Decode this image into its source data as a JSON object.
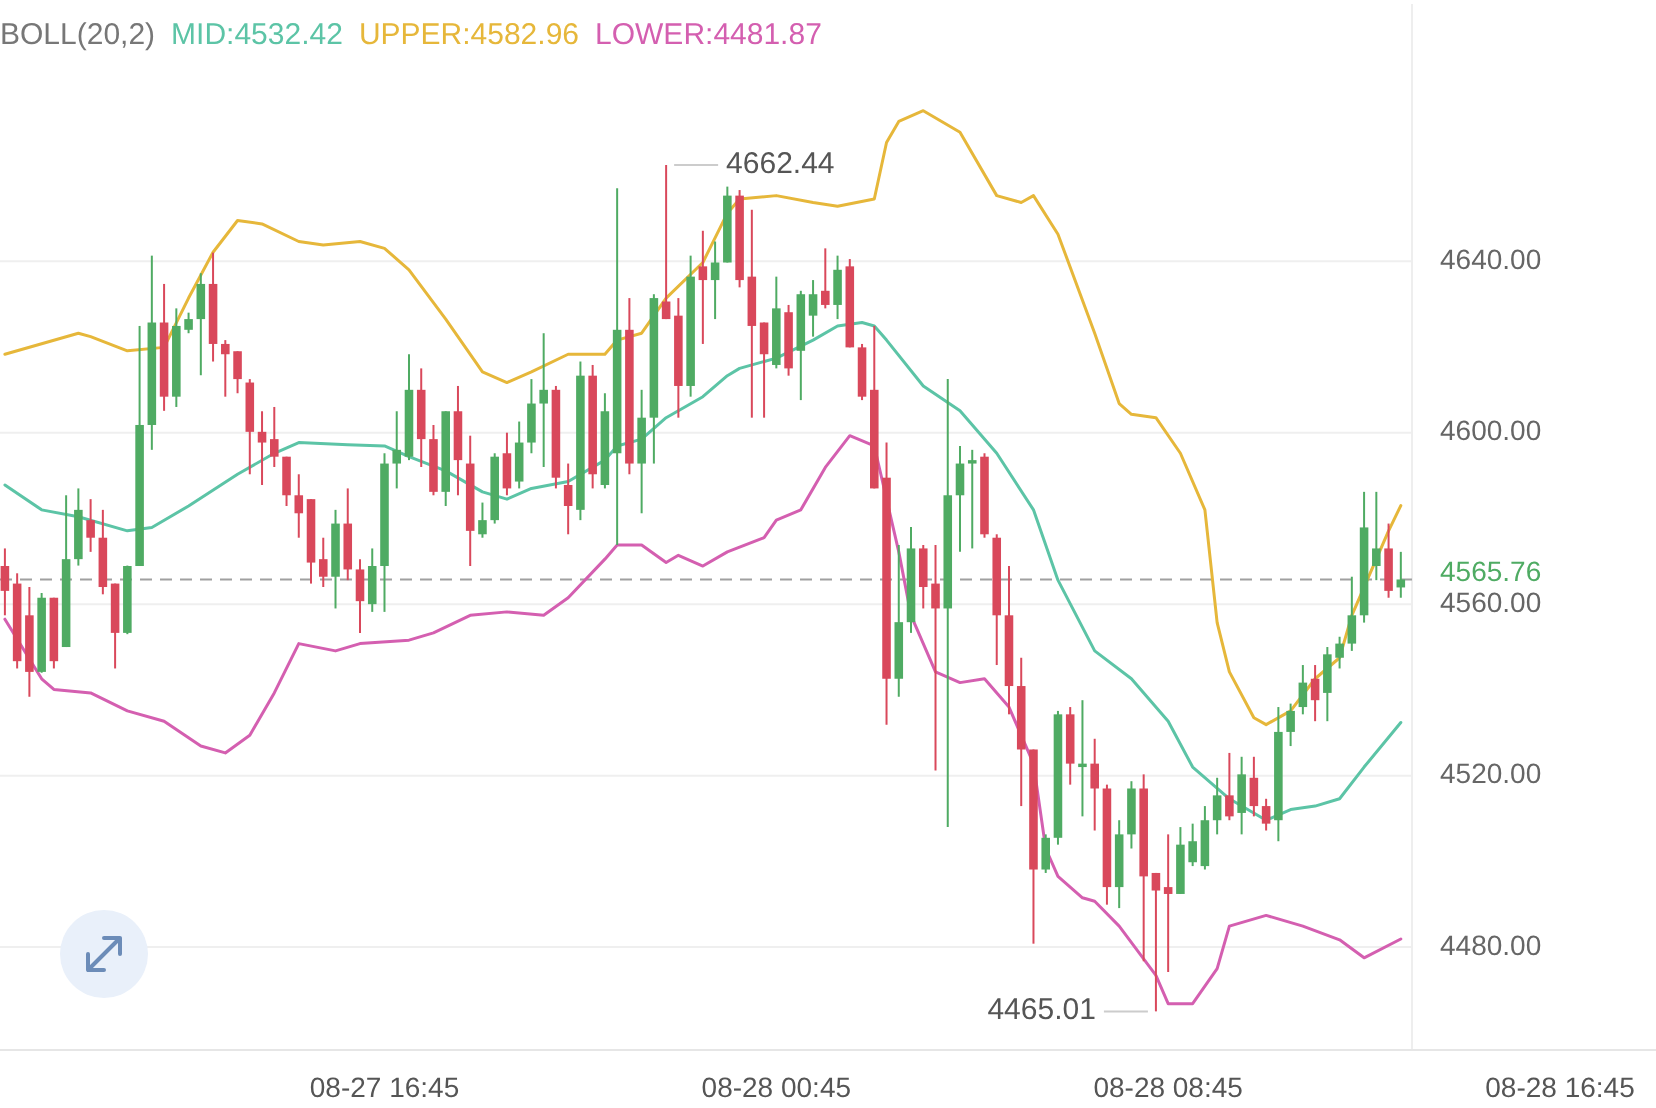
{
  "chart_data": {
    "type": "candlestick",
    "legend_title": "BOLL(20,2)",
    "legend": "top left",
    "grid": "y",
    "categories": [
      null,
      null,
      null,
      null,
      null,
      null,
      null,
      null,
      null,
      null,
      null,
      null,
      null,
      null,
      null,
      null,
      null,
      null,
      null,
      null,
      null,
      null,
      null,
      null,
      null,
      null,
      null,
      null,
      null,
      null,
      null,
      "08-27 16:45",
      null,
      null,
      null,
      null,
      null,
      null,
      null,
      null,
      null,
      null,
      null,
      null,
      null,
      null,
      null,
      null,
      null,
      null,
      null,
      null,
      null,
      null,
      null,
      null,
      null,
      null,
      null,
      null,
      null,
      null,
      null,
      "08-28 00:45",
      null,
      null,
      null,
      null,
      null,
      null,
      null,
      null,
      null,
      null,
      null,
      null,
      null,
      null,
      null,
      null,
      null,
      null,
      null,
      null,
      null,
      null,
      null,
      null,
      null,
      null,
      null,
      null,
      null,
      null,
      null,
      "08-28 08:45",
      null,
      null,
      null,
      null,
      null,
      null,
      null,
      null,
      null,
      null,
      null,
      null,
      null,
      null,
      null,
      null,
      null,
      null,
      null,
      null,
      null,
      null,
      null,
      null,
      null,
      null,
      null,
      null,
      null,
      null,
      null,
      "08-28 16:45"
    ],
    "colors": [
      "#d9485b",
      "#d9485b",
      "#d9485b",
      "#4fab63",
      "#d9485b",
      "#4fab63",
      "#4fab63",
      "#d9485b",
      "#d9485b",
      "#d9485b",
      "#4fab63",
      "#4fab63",
      "#4fab63",
      "#d9485b",
      "#4fab63",
      "#4fab63",
      "#4fab63",
      "#d9485b",
      "#d9485b",
      "#d9485b",
      "#d9485b",
      "#d9485b",
      "#d9485b",
      "#d9485b",
      "#d9485b",
      "#d9485b",
      "#d9485b",
      "#4fab63",
      "#d9485b",
      "#d9485b",
      "#4fab63",
      "#4fab63",
      "#4fab63",
      "#4fab63",
      "#d9485b",
      "#d9485b",
      "#4fab63",
      "#d9485b",
      "#d9485b",
      "#4fab63",
      "#4fab63",
      "#d9485b",
      "#4fab63",
      "#4fab63",
      "#4fab63",
      "#d9485b",
      "#d9485b",
      "#4fab63",
      "#d9485b",
      "#4fab63",
      "#4fab63",
      "#d9485b",
      "#4fab63",
      "#4fab63",
      "#d9485b",
      "#d9485b",
      "#4fab63",
      "#d9485b",
      "#4fab63",
      "#4fab63",
      "#d9485b",
      "#d9485b",
      "#d9485b",
      "#4fab63",
      "#d9485b",
      "#4fab63",
      "#4fab63",
      "#d9485b",
      "#4fab63",
      "#d9485b",
      "#d9485b",
      "#d9485b",
      "#d9485b",
      "#4fab63",
      "#4fab63",
      "#d9485b",
      "#d9485b",
      "#4fab63",
      "#4fab63",
      "#4fab63",
      "#d9485b",
      "#d9485b",
      "#d9485b",
      "#d9485b",
      "#d9485b",
      "#4fab63",
      "#4fab63",
      "#d9485b",
      "#4fab63",
      "#d9485b",
      "#d9485b",
      "#4fab63",
      "#4fab63",
      "#d9485b",
      "#d9485b",
      "#d9485b",
      "#4fab63",
      "#4fab63",
      "#4fab63",
      "#4fab63",
      "#d9485b",
      "#4fab63",
      "#d9485b",
      "#d9485b",
      "#4fab63",
      "#4fab63",
      "#4fab63",
      "#d9485b",
      "#4fab63",
      "#4fab63",
      "#4fab63",
      "#4fab63",
      "#4fab63",
      "#d9485b",
      "#4fab63",
      null,
      null,
      null,
      null,
      null,
      null,
      null,
      null,
      null,
      null,
      null,
      null,
      null
    ],
    "ohlc": [
      [
        4568.9,
        4573,
        4557.4,
        4563.1
      ],
      [
        4564.8,
        4567.2,
        4545,
        4546.7
      ],
      [
        4557.4,
        4564,
        4538.4,
        4544.2
      ],
      [
        4544.2,
        4562.6,
        4544,
        4561.5
      ],
      [
        4561.5,
        4561.5,
        4545,
        4546.7
      ],
      [
        4550,
        4585.4,
        4550,
        4570.5
      ],
      [
        4570.5,
        4587,
        4569,
        4582
      ],
      [
        4579.6,
        4584.5,
        4572.2,
        4575.5
      ],
      [
        4575.5,
        4582,
        4562.3,
        4564
      ],
      [
        4564.8,
        4564.8,
        4545,
        4553.3
      ],
      [
        4553.3,
        4569,
        4553,
        4568.9
      ],
      [
        4568.9,
        4624.9,
        4568.9,
        4601.8
      ],
      [
        4601.8,
        4641.3,
        4596,
        4625.7
      ],
      [
        4625.7,
        4634.7,
        4605.1,
        4608.4
      ],
      [
        4608.4,
        4629,
        4606,
        4624.9
      ],
      [
        4624,
        4628,
        4623.2,
        4626.5
      ],
      [
        4626.5,
        4637.2,
        4613.4,
        4634.7
      ],
      [
        4634.7,
        4642,
        4616.6,
        4620.7
      ],
      [
        4620.7,
        4621.6,
        4608.4,
        4618.3
      ],
      [
        4619,
        4619,
        4609.2,
        4612.5
      ],
      [
        4611.7,
        4612.5,
        4590.3,
        4600.2
      ],
      [
        4600.2,
        4605,
        4587.8,
        4597.7
      ],
      [
        4598.5,
        4606,
        4592,
        4594.4
      ],
      [
        4594.4,
        4594.4,
        4582.9,
        4585.4
      ],
      [
        4585.4,
        4590.3,
        4575.5,
        4581.2
      ],
      [
        4584.5,
        4584.5,
        4564.8,
        4569.7
      ],
      [
        4570.5,
        4575.5,
        4564,
        4566.4
      ],
      [
        4566.4,
        4582,
        4559,
        4578.8
      ],
      [
        4578.8,
        4587,
        4565.6,
        4568.1
      ],
      [
        4568.1,
        4570.5,
        4553.3,
        4560.7
      ],
      [
        4560,
        4573,
        4558.2,
        4568.9
      ],
      [
        4568.9,
        4595.2,
        4558.2,
        4592.8
      ],
      [
        4592.8,
        4605,
        4587,
        4596
      ],
      [
        4594.4,
        4618.3,
        4593.6,
        4610
      ],
      [
        4610,
        4615,
        4592,
        4598.5
      ],
      [
        4598.5,
        4601.8,
        4585.4,
        4586.2
      ],
      [
        4586.2,
        4605,
        4582.9,
        4605
      ],
      [
        4605,
        4610.9,
        4585.4,
        4593.6
      ],
      [
        4592.8,
        4599.3,
        4568.9,
        4577.1
      ],
      [
        4576.3,
        4583.7,
        4575.5,
        4579.6
      ],
      [
        4579.6,
        4595.2,
        4578.8,
        4594.4
      ],
      [
        4595.2,
        4600,
        4585.4,
        4587
      ],
      [
        4588.6,
        4602.6,
        4587,
        4597.7
      ],
      [
        4597.7,
        4612.5,
        4595.2,
        4606.8
      ],
      [
        4606.8,
        4623.2,
        4592,
        4610
      ],
      [
        4610,
        4610.9,
        4587,
        4589.5
      ],
      [
        4587.8,
        4592.8,
        4576.3,
        4582.9
      ],
      [
        4582,
        4616.6,
        4579.6,
        4613.3
      ],
      [
        4613.3,
        4615.8,
        4587,
        4590.3
      ],
      [
        4587.8,
        4609.2,
        4587,
        4605
      ],
      [
        4595.2,
        4657,
        4573.8,
        4624
      ],
      [
        4624,
        4631.4,
        4590.3,
        4592.8
      ],
      [
        4592.8,
        4610,
        4581.2,
        4603.5
      ],
      [
        4603.5,
        4632.3,
        4592.8,
        4631.4
      ],
      [
        4630.6,
        4662.44,
        4626.5,
        4626.5
      ],
      [
        4627.3,
        4631.4,
        4603.5,
        4610.9
      ],
      [
        4610.9,
        4641.3,
        4608.4,
        4636.4
      ],
      [
        4638.8,
        4647.1,
        4620.7,
        4635.6
      ],
      [
        4635.6,
        4644.6,
        4626.5,
        4639.7
      ],
      [
        4639.7,
        4657.4,
        4639.7,
        4655.3
      ],
      [
        4655.3,
        4656.6,
        4633.9,
        4635.6
      ],
      [
        4636.4,
        4652,
        4603.5,
        4624.9
      ],
      [
        4625.7,
        4625.7,
        4603.5,
        4618.3
      ],
      [
        4615.8,
        4636.4,
        4615,
        4629
      ],
      [
        4628.1,
        4629.8,
        4613.3,
        4615
      ],
      [
        4619.1,
        4633.1,
        4607.6,
        4632.3
      ],
      [
        4627.3,
        4635.6,
        4622.4,
        4632.3
      ],
      [
        4633.1,
        4643,
        4629,
        4629.8
      ],
      [
        4629.8,
        4641.3,
        4626.5,
        4638
      ],
      [
        4638.8,
        4640.5,
        4619.9,
        4619.9
      ],
      [
        4619.9,
        4620.7,
        4607.6,
        4608.4
      ],
      [
        4610,
        4624.9,
        4587,
        4587
      ],
      [
        4589.5,
        4597.7,
        4531.9,
        4542.6
      ],
      [
        4542.6,
        4573.8,
        4538.4,
        4555.8
      ],
      [
        4555.8,
        4578,
        4553.3,
        4573
      ],
      [
        4573,
        4573.8,
        4559,
        4564
      ],
      [
        4564.8,
        4573.8,
        4521.2,
        4559
      ],
      [
        4559,
        4612.5,
        4508,
        4585.4
      ],
      [
        4585.4,
        4596.9,
        4572.2,
        4592.8
      ],
      [
        4592.8,
        4596,
        4573,
        4593.6
      ],
      [
        4594.4,
        4595.2,
        4575.5,
        4576.3
      ],
      [
        4575.5,
        4576.3,
        4545.8,
        4557.4
      ],
      [
        4557.4,
        4568.9,
        4534.3,
        4540.9
      ],
      [
        4540.9,
        4547.5,
        4512.9,
        4526.1
      ],
      [
        4526.1,
        4526.1,
        4480.8,
        4498.1
      ],
      [
        4498.1,
        4506.3,
        4497.3,
        4505.5
      ],
      [
        4505.5,
        4535.1,
        4503.9,
        4534.3
      ],
      [
        4534.3,
        4536,
        4517.9,
        4522.8
      ],
      [
        4522,
        4537.6,
        4510.5,
        4522.8
      ],
      [
        4522.8,
        4528.6,
        4507.2,
        4517
      ],
      [
        4517,
        4517.9,
        4489.9,
        4494
      ],
      [
        4494,
        4509.6,
        4489.1,
        4506.3
      ],
      [
        4506.3,
        4518.7,
        4503,
        4517
      ],
      [
        4517,
        4520.3,
        4476.7,
        4496.5
      ],
      [
        4497.3,
        4497.3,
        4465.01,
        4493.2
      ],
      [
        4494,
        4506.3,
        4474.2,
        4492.4
      ],
      [
        4492.4,
        4508,
        4492.4,
        4503.9
      ],
      [
        4499.8,
        4508.8,
        4498.9,
        4504.7
      ],
      [
        4498.9,
        4512.9,
        4498.1,
        4509.6
      ],
      [
        4509.6,
        4519.5,
        4506.3,
        4515.4
      ],
      [
        4515.4,
        4525.3,
        4509.6,
        4510.5
      ],
      [
        4511.3,
        4524.4,
        4506.3,
        4520.3
      ],
      [
        4519.5,
        4524.4,
        4510.5,
        4512.9
      ],
      [
        4512.9,
        4514.6,
        4507.2,
        4508.8
      ],
      [
        4509.6,
        4536,
        4504.7,
        4530.2
      ],
      [
        4530.2,
        4536.8,
        4526.9,
        4535.1
      ],
      [
        4536,
        4545.8,
        4534.3,
        4541.7
      ],
      [
        4542.6,
        4545.8,
        4532.7,
        4537.6
      ],
      [
        4539.3,
        4550,
        4532.7,
        4548.3
      ],
      [
        4547.5,
        4552.4,
        4545,
        4550.8
      ],
      [
        4550.8,
        4566.4,
        4549.1,
        4557.4
      ],
      [
        4557.4,
        4586.2,
        4555.7,
        4577.9
      ],
      [
        4568.9,
        4586.2,
        4565.6,
        4573
      ],
      [
        4573,
        4578.8,
        4561.5,
        4563.1
      ],
      [
        4563.9,
        4572.2,
        4561.5,
        4565.76
      ],
      null,
      null,
      null,
      null,
      null,
      null,
      null,
      null,
      null,
      null,
      null,
      null,
      null
    ],
    "series": [
      {
        "type": "line",
        "name": "MID:4532.42",
        "color": "#5cc4a6",
        "values": [
          4587.8,
          null,
          null,
          4582,
          null,
          null,
          4580.4,
          null,
          null,
          null,
          4577.1,
          null,
          4577.9,
          null,
          null,
          4582.9,
          null,
          null,
          null,
          4590.3,
          null,
          null,
          4595.2,
          null,
          4597.7,
          null,
          null,
          null,
          4597.2,
          null,
          null,
          4596.9,
          null,
          4594.4,
          null,
          null,
          4591.1,
          null,
          null,
          4586.2,
          null,
          4584.5,
          null,
          4587,
          null,
          null,
          4588.6,
          null,
          null,
          4593.6,
          4596.9,
          null,
          4598.5,
          null,
          4603.5,
          null,
          null,
          4608.4,
          null,
          4613.3,
          4615,
          null,
          null,
          4617.4,
          null,
          null,
          4621.6,
          null,
          4624.9,
          null,
          4625.7,
          4624.9,
          4621.6,
          null,
          null,
          4610.9,
          null,
          null,
          4605.1,
          null,
          null,
          4595.2,
          null,
          null,
          4582,
          null,
          4565.6,
          null,
          null,
          4549.1,
          null,
          null,
          4542.6,
          null,
          null,
          4532.7,
          null,
          4522,
          null,
          null,
          4514.6,
          null,
          null,
          4509.6,
          null,
          4512.1,
          null,
          4512.9,
          null,
          4514.6,
          null,
          4522,
          null,
          null,
          4532.4,
          null,
          null,
          null,
          null,
          null,
          null,
          null,
          null,
          null,
          null,
          null,
          null,
          null
        ]
      },
      {
        "type": "line",
        "name": "UPPER:4582.96",
        "color": "#e6b73a",
        "values": [
          4618.3,
          null,
          null,
          null,
          null,
          null,
          4623.2,
          4622.4,
          null,
          null,
          4619.1,
          null,
          null,
          4619.9,
          null,
          4631.4,
          null,
          4642.1,
          null,
          4649.5,
          null,
          4648.7,
          null,
          null,
          4644.6,
          null,
          4643.8,
          null,
          null,
          4644.6,
          null,
          4643,
          null,
          4638,
          null,
          null,
          4626.5,
          null,
          null,
          4614.2,
          null,
          4611.7,
          null,
          4614.2,
          null,
          null,
          4618.3,
          null,
          null,
          4618.3,
          4621.6,
          null,
          4623.2,
          null,
          4631.4,
          null,
          null,
          4639.7,
          null,
          4651.2,
          4654.5,
          null,
          null,
          4655.3,
          null,
          null,
          4653.7,
          null,
          4652.8,
          null,
          null,
          4654.5,
          4667.7,
          4672.6,
          null,
          4675.1,
          null,
          null,
          4670.1,
          null,
          null,
          4655.3,
          null,
          4653.7,
          4655.3,
          null,
          4646.3,
          null,
          null,
          4623.2,
          null,
          4606.8,
          4604.3,
          null,
          4603.5,
          null,
          4595.2,
          null,
          4582,
          4555.7,
          4544.2,
          null,
          4533.5,
          4531.9,
          null,
          4535.1,
          null,
          4542.6,
          null,
          4547.5,
          4557.4,
          null,
          null,
          4577.1,
          4583,
          null,
          null,
          null,
          null,
          null,
          null,
          null,
          null,
          null,
          null,
          null,
          null,
          null
        ]
      },
      {
        "type": "line",
        "name": "LOWER:4481.87",
        "color": "#d45fb0",
        "values": [
          4556.5,
          null,
          null,
          4542.6,
          4540.1,
          null,
          null,
          4539.3,
          null,
          null,
          4535.1,
          null,
          null,
          4532.7,
          null,
          null,
          4526.9,
          null,
          4525.3,
          null,
          4529.4,
          null,
          4539.3,
          null,
          4550.8,
          null,
          null,
          4549.1,
          null,
          4550.8,
          null,
          null,
          null,
          4551.6,
          null,
          4553.3,
          null,
          null,
          4557.4,
          null,
          null,
          4558.2,
          null,
          null,
          4557.4,
          null,
          4561.5,
          null,
          null,
          4570.5,
          4573.8,
          null,
          4573.8,
          null,
          4569.7,
          4571.4,
          null,
          4568.9,
          null,
          4572.2,
          null,
          null,
          4575.5,
          4579.6,
          null,
          4582,
          null,
          4591.9,
          null,
          4599.3,
          null,
          4596.9,
          null,
          4572.2,
          4557.4,
          null,
          4544.2,
          null,
          4541.7,
          null,
          4542.6,
          null,
          4536,
          null,
          4522.8,
          4503,
          4496.5,
          null,
          4491.5,
          4490.7,
          null,
          4484.9,
          null,
          null,
          4473.4,
          4466.8,
          null,
          4466.8,
          null,
          4475,
          4484.9,
          null,
          null,
          4487.4,
          null,
          null,
          4484.9,
          null,
          null,
          4481.7,
          null,
          4477.5,
          null,
          null,
          4481.9,
          null,
          null,
          null,
          null,
          null,
          null,
          null,
          null,
          null,
          null,
          null,
          null,
          null
        ]
      }
    ],
    "ylim": [
      4456,
      4700
    ],
    "yticks": [
      {
        "value": 4480,
        "label": "4480.00"
      },
      {
        "value": 4520,
        "label": "4520.00"
      },
      {
        "value": 4560,
        "label": "4560.00"
      },
      {
        "value": 4600,
        "label": "4600.00"
      },
      {
        "value": 4640,
        "label": "4640.00"
      }
    ],
    "ref_lines": [
      {
        "axis": "y",
        "value": 4565.76,
        "label": "4565.76",
        "color": "#a0a0a0",
        "line_style": "dashed"
      }
    ],
    "annotations": [
      "4662.44",
      "4465.01"
    ]
  }
}
